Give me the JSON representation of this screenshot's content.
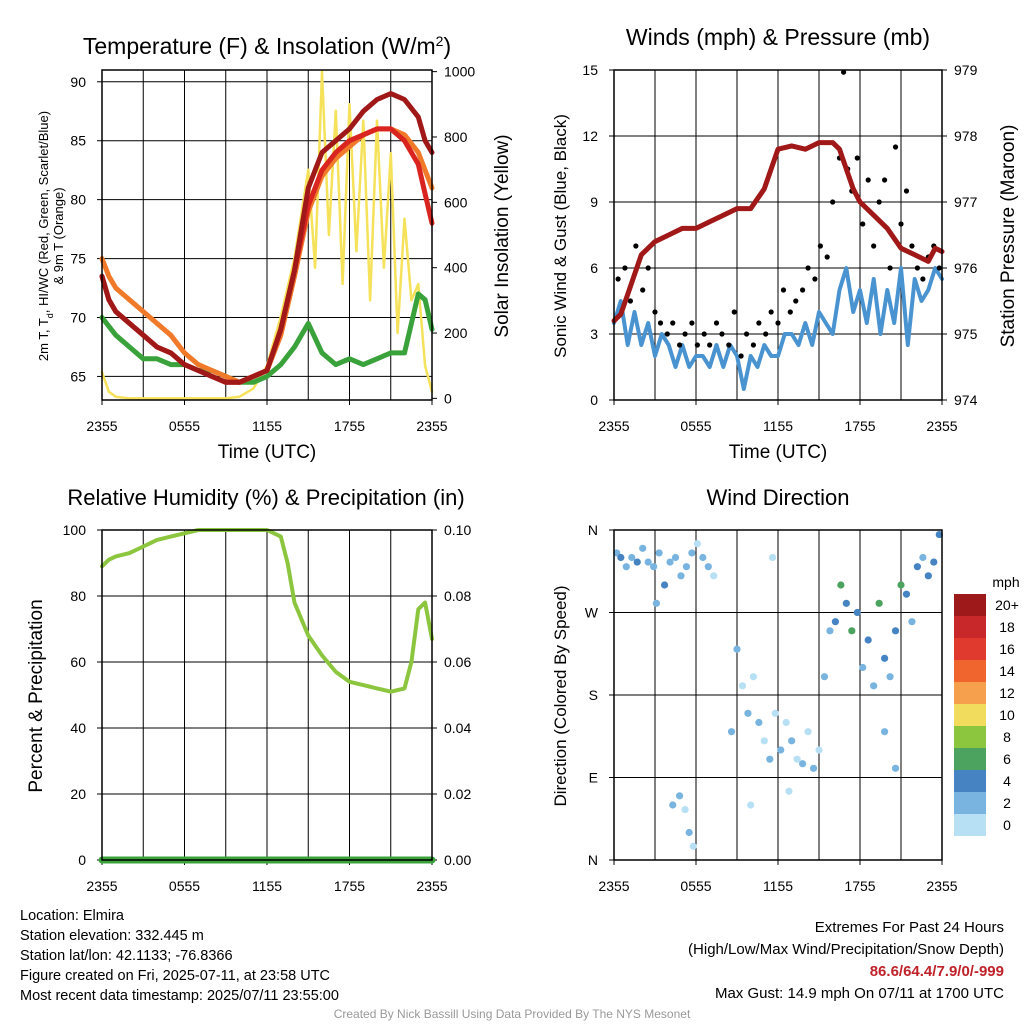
{
  "charts": {
    "temperature": {
      "title": "Temperature (F) & Insolation (W/m",
      "title_sup": "2",
      "title_end": ")",
      "xlabel": "Time (UTC)",
      "ylabel_line1": "2m T, T",
      "ylabel_sub": "d",
      "ylabel_line1_end": ", HI/WC (Red, Green, Scarlet/Blue)",
      "ylabel_line2": "& 9m T (Orange)",
      "y2label": "Solar Insolation (Yellow)"
    },
    "winds": {
      "title": "Winds (mph) & Pressure (mb)",
      "xlabel": "Time (UTC)",
      "ylabel": "Sonic Wind & Gust (Blue, Black)",
      "y2label": "Station Pressure (Maroon)"
    },
    "humidity": {
      "title": "Relative Humidity (%) & Precipitation (in)",
      "ylabel": "Percent & Precipitation"
    },
    "direction": {
      "title": "Wind Direction",
      "ylabel": "Direction (Colored By Speed)",
      "colorbar_unit": "mph"
    }
  },
  "chart_data": [
    {
      "id": "temperature",
      "type": "line",
      "x_ticks": [
        "2355",
        "0555",
        "1155",
        "1755",
        "2355"
      ],
      "x_range_hours": [
        0,
        24
      ],
      "ylim": [
        63,
        91
      ],
      "y_ticks": [
        65,
        70,
        75,
        80,
        85,
        90
      ],
      "y2lim": [
        -5,
        1005
      ],
      "y2_ticks": [
        0,
        200,
        400,
        600,
        800,
        1000
      ],
      "series": [
        {
          "name": "2m T",
          "color": "#a01818",
          "axis": "left",
          "x": [
            0,
            0.5,
            1,
            2,
            3,
            4,
            5,
            6,
            7,
            8,
            9,
            10,
            11,
            12,
            13,
            14,
            15,
            16,
            17,
            18,
            19,
            20,
            21,
            22,
            23,
            23.5,
            24
          ],
          "y": [
            73.5,
            71.5,
            70.5,
            69.5,
            68.5,
            67.5,
            67,
            66,
            65.5,
            65,
            64.5,
            64.5,
            65,
            65.5,
            69,
            74,
            81,
            84,
            85,
            86,
            87.5,
            88.5,
            89,
            88.5,
            87,
            85,
            84
          ]
        },
        {
          "name": "HI/WC",
          "color": "#d92420",
          "axis": "left",
          "x": [
            0,
            0.5,
            1,
            2,
            3,
            4,
            5,
            6,
            7,
            8,
            9,
            10,
            11,
            12,
            13,
            14,
            15,
            16,
            17,
            18,
            19,
            20,
            21,
            22,
            23,
            23.5,
            24
          ],
          "y": [
            73.5,
            71.5,
            70.5,
            69.5,
            68.5,
            67.5,
            67,
            66,
            65.5,
            65,
            64.5,
            64.5,
            65,
            65.5,
            69,
            74,
            79.5,
            82.5,
            84,
            85,
            85.5,
            86,
            86,
            85,
            83,
            80.5,
            78
          ]
        },
        {
          "name": "9m T",
          "color": "#f07a2a",
          "axis": "left",
          "x": [
            0,
            0.5,
            1,
            2,
            3,
            4,
            5,
            6,
            7,
            8,
            9,
            10,
            11,
            12,
            13,
            14,
            15,
            16,
            17,
            18,
            19,
            20,
            21,
            22,
            23,
            23.5,
            24
          ],
          "y": [
            75,
            73.5,
            72.5,
            71.5,
            70.5,
            69.5,
            68.5,
            67,
            66,
            65.5,
            65,
            64.5,
            65,
            65.5,
            68.5,
            73.5,
            79,
            82,
            83.5,
            84.5,
            85.5,
            86,
            86,
            85.5,
            84,
            82.5,
            81
          ]
        },
        {
          "name": "Td",
          "color": "#3aa23a",
          "axis": "left",
          "x": [
            0,
            1,
            2,
            3,
            4,
            5,
            6,
            7,
            8,
            9,
            10,
            11,
            12,
            13,
            14,
            15,
            16,
            17,
            18,
            19,
            20,
            21,
            22,
            23,
            23.5,
            24
          ],
          "y": [
            70,
            68.5,
            67.5,
            66.5,
            66.5,
            66,
            66,
            65.5,
            65.5,
            65,
            64.5,
            64.5,
            65,
            66,
            67.5,
            69.5,
            67,
            66,
            66.5,
            66,
            66.5,
            67,
            67,
            72,
            71.5,
            69
          ]
        },
        {
          "name": "Solar Insolation",
          "color": "#f5e25a",
          "axis": "right",
          "x": [
            0,
            0.5,
            1,
            2,
            4,
            6,
            8,
            9,
            10,
            11,
            12,
            13,
            14,
            15,
            15.5,
            16,
            16.5,
            17,
            17.5,
            18,
            18.5,
            19,
            19.5,
            20,
            20.5,
            21,
            21.5,
            22,
            22.5,
            23,
            23.5,
            24
          ],
          "y": [
            80,
            20,
            5,
            0,
            0,
            0,
            0,
            0,
            5,
            30,
            100,
            250,
            430,
            700,
            400,
            1000,
            500,
            880,
            350,
            900,
            450,
            850,
            300,
            850,
            400,
            750,
            200,
            550,
            300,
            350,
            100,
            20
          ]
        }
      ]
    },
    {
      "id": "winds",
      "type": "line",
      "x_ticks": [
        "2355",
        "0555",
        "1155",
        "1755",
        "2355"
      ],
      "x_range_hours": [
        0,
        24
      ],
      "ylim": [
        0,
        15
      ],
      "y_ticks": [
        0,
        3,
        6,
        9,
        12,
        15
      ],
      "y2lim": [
        974,
        979
      ],
      "y2_ticks": [
        974,
        975,
        976,
        977,
        978,
        979
      ],
      "series": [
        {
          "name": "Sonic Wind",
          "color": "#4a93d1",
          "axis": "left",
          "x": [
            0,
            0.5,
            1,
            1.5,
            2,
            2.5,
            3,
            3.5,
            4,
            4.5,
            5,
            5.5,
            6,
            6.5,
            7,
            7.5,
            8,
            8.5,
            9,
            9.5,
            10,
            10.5,
            11,
            11.5,
            12,
            12.5,
            13,
            13.5,
            14,
            14.5,
            15,
            15.5,
            16,
            16.5,
            17,
            17.5,
            18,
            18.5,
            19,
            19.5,
            20,
            20.5,
            21,
            21.5,
            22,
            22.5,
            23,
            23.5,
            24
          ],
          "y": [
            3.5,
            4.5,
            2.5,
            4,
            2.5,
            3.5,
            2,
            3,
            2.5,
            1.5,
            2.5,
            1.5,
            2,
            2,
            1.5,
            2.5,
            1.5,
            2.5,
            2,
            0.5,
            2,
            1.5,
            2.5,
            2,
            2,
            3,
            3,
            2.5,
            3.5,
            2.5,
            4,
            3.5,
            3,
            5,
            6,
            4,
            5,
            3.5,
            5.5,
            3,
            5,
            3.5,
            6,
            2.5,
            5.5,
            4.5,
            5,
            6,
            5.5
          ]
        },
        {
          "name": "Station Pressure",
          "color": "#a01818",
          "axis": "right",
          "x": [
            0,
            0.5,
            1,
            1.5,
            2,
            3,
            4,
            5,
            6,
            7,
            8,
            9,
            10,
            11,
            12,
            13,
            14,
            15,
            16,
            16.5,
            17,
            17.5,
            18,
            19,
            20,
            21,
            22,
            23,
            23.5,
            24
          ],
          "y": [
            975.2,
            975.3,
            975.6,
            975.9,
            976.2,
            976.4,
            976.5,
            976.6,
            976.6,
            976.7,
            976.8,
            976.9,
            976.9,
            977.2,
            977.8,
            977.85,
            977.8,
            977.9,
            977.9,
            977.8,
            977.5,
            977.2,
            977,
            976.8,
            976.6,
            976.3,
            976.2,
            976.1,
            976.3,
            976.25
          ]
        }
      ],
      "gust_points": {
        "name": "Gust",
        "color": "#000000",
        "x": [
          0.3,
          0.8,
          1.2,
          1.6,
          2.1,
          2.5,
          3,
          3.4,
          3.9,
          4.3,
          4.8,
          5.2,
          5.7,
          6.1,
          6.6,
          7,
          7.5,
          7.9,
          8.4,
          8.8,
          9.3,
          9.7,
          10.2,
          10.6,
          11.1,
          11.5,
          12,
          12.4,
          12.9,
          13.3,
          13.8,
          14.2,
          14.7,
          15.1,
          15.6,
          16,
          16.5,
          16.8,
          17.1,
          17.4,
          17.8,
          18.2,
          18.6,
          19,
          19.4,
          19.8,
          20.2,
          20.6,
          21,
          21.4,
          21.8,
          22.2,
          22.6,
          23,
          23.4,
          23.8
        ],
        "y": [
          5.5,
          6,
          4.5,
          7,
          5,
          6,
          4,
          3.5,
          3,
          3.5,
          2.5,
          3,
          3.5,
          2.5,
          3,
          2.5,
          3.5,
          3,
          2.5,
          4,
          2,
          3,
          2.5,
          3.5,
          3,
          4,
          3.5,
          5,
          4,
          4.5,
          5,
          6,
          5.5,
          7,
          6.5,
          9,
          11,
          14.9,
          10.5,
          9.5,
          11,
          8,
          10,
          7,
          9,
          10,
          6,
          11.5,
          8,
          9.5,
          7,
          6,
          5.5,
          6.5,
          7,
          6
        ]
      }
    },
    {
      "id": "humidity",
      "type": "line",
      "x_ticks": [
        "2355",
        "0555",
        "1155",
        "1755",
        "2355"
      ],
      "x_range_hours": [
        0,
        24
      ],
      "ylim": [
        0,
        100
      ],
      "y_ticks": [
        0,
        20,
        40,
        60,
        80,
        100
      ],
      "y2lim": [
        0,
        0.1
      ],
      "y2_ticks": [
        "0.00",
        "0.02",
        "0.04",
        "0.06",
        "0.08",
        "0.10"
      ],
      "series": [
        {
          "name": "Relative Humidity",
          "color": "#8cc63f",
          "axis": "left",
          "x": [
            0,
            0.5,
            1,
            2,
            3,
            4,
            5,
            6,
            7,
            8,
            9,
            10,
            11,
            12,
            13,
            13.5,
            14,
            15,
            16,
            17,
            18,
            19,
            20,
            21,
            22,
            22.5,
            23,
            23.5,
            24
          ],
          "y": [
            89,
            91,
            92,
            93,
            95,
            97,
            98,
            99,
            100,
            100,
            100,
            100,
            100,
            100,
            98,
            90,
            78,
            68,
            62,
            57,
            54,
            53,
            52,
            51,
            52,
            60,
            76,
            78,
            67
          ]
        },
        {
          "name": "Precipitation",
          "color": "#3aa23a",
          "axis": "right",
          "x": [
            0,
            24
          ],
          "y": [
            0,
            0
          ]
        }
      ]
    },
    {
      "id": "direction",
      "type": "scatter",
      "x_ticks": [
        "2355",
        "0555",
        "1155",
        "1755",
        "2355"
      ],
      "x_range_hours": [
        0,
        24
      ],
      "y_ticks": [
        "N",
        "E",
        "S",
        "W",
        "N"
      ],
      "ylim": [
        0,
        360
      ],
      "colorbar": {
        "labels": [
          "20+",
          "18",
          "16",
          "14",
          "12",
          "10",
          "8",
          "6",
          "4",
          "2",
          "0"
        ],
        "colors": [
          "#9e1a1a",
          "#c9282a",
          "#e0392d",
          "#f0652e",
          "#f6a04e",
          "#f2dc5d",
          "#8cc63f",
          "#4ba35f",
          "#4583c3",
          "#79b4e0",
          "#b8e0f5"
        ]
      },
      "points": {
        "x": [
          0.2,
          0.5,
          0.9,
          1.3,
          1.7,
          2.1,
          2.5,
          2.9,
          3.3,
          3.7,
          4.1,
          4.5,
          4.9,
          5.3,
          5.7,
          6.1,
          6.5,
          6.9,
          7.3,
          4.3,
          4.8,
          5.2,
          5.5,
          5.8,
          8.6,
          9.0,
          9.4,
          9.8,
          10.2,
          10.6,
          11.0,
          11.4,
          11.8,
          12.2,
          12.6,
          13.0,
          13.4,
          13.8,
          14.2,
          14.6,
          15.0,
          15.4,
          15.8,
          16.2,
          16.6,
          17.0,
          17.4,
          17.8,
          18.2,
          18.6,
          19.0,
          19.4,
          19.8,
          20.2,
          20.6,
          21.0,
          21.4,
          21.8,
          22.2,
          22.6,
          23.0,
          23.4,
          23.8,
          3.1,
          10.0,
          11.6,
          12.8,
          19.8,
          20.6
        ],
        "y": [
          335,
          330,
          320,
          330,
          325,
          340,
          325,
          320,
          335,
          300,
          325,
          330,
          310,
          320,
          335,
          345,
          330,
          320,
          310,
          60,
          70,
          55,
          30,
          15,
          140,
          230,
          190,
          160,
          200,
          150,
          130,
          110,
          160,
          120,
          150,
          130,
          110,
          105,
          140,
          100,
          120,
          200,
          250,
          260,
          300,
          280,
          250,
          270,
          210,
          240,
          190,
          280,
          220,
          200,
          250,
          300,
          290,
          260,
          320,
          330,
          310,
          325,
          355,
          280,
          60,
          330,
          75,
          140,
          100
        ],
        "speed": [
          3,
          4,
          3,
          2,
          4,
          3,
          3,
          2,
          3,
          4,
          3,
          2,
          3,
          3,
          2,
          1,
          2,
          3,
          1,
          3,
          2,
          1,
          2,
          1,
          2,
          3,
          1,
          2,
          1,
          2,
          1,
          2,
          1,
          2,
          1,
          2,
          1,
          2,
          1,
          2,
          1,
          2,
          3,
          4,
          6,
          5,
          6,
          4,
          3,
          4,
          3,
          6,
          4,
          3,
          5,
          6,
          5,
          3,
          4,
          3,
          4,
          5,
          4,
          2,
          1,
          1,
          1,
          2,
          3
        ]
      }
    }
  ],
  "footer": {
    "location": "Location: Elmira",
    "elevation": "Station elevation: 332.445 m",
    "latlon": "Station lat/lon: 42.1133; -76.8366",
    "created": "Figure created on Fri, 2025-07-11, at 23:58 UTC",
    "recent": "Most recent data timestamp: 2025/07/11 23:55:00",
    "extremes_title": "Extremes For Past 24 Hours",
    "extremes_sub": "(High/Low/Max Wind/Precipitation/Snow Depth)",
    "extremes_values": "86.6/64.4/7.9/0/-999",
    "max_gust": "Max Gust: 14.9 mph On 07/11 at 1700 UTC",
    "credit": "Created By Nick Bassill Using Data Provided By The NYS Mesonet"
  }
}
